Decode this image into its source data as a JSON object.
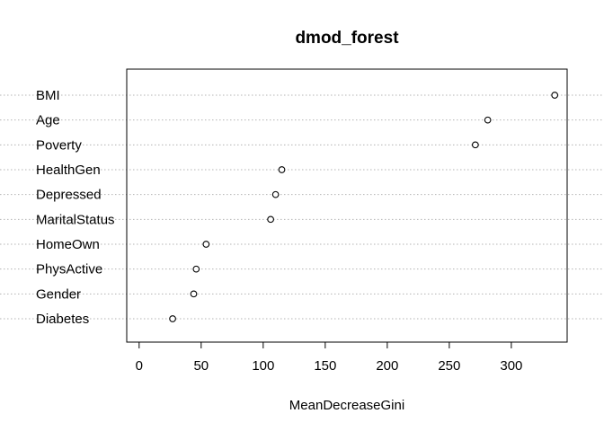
{
  "chart_data": {
    "type": "scatter",
    "title": "dmod_forest",
    "xlabel": "MeanDecreaseGini",
    "ylabel": "",
    "xlim": [
      -10,
      345
    ],
    "xticks": [
      0,
      50,
      100,
      150,
      200,
      250,
      300
    ],
    "grid": "dotted horizontal lines per variable",
    "points": [
      {
        "label": "BMI",
        "value": 335
      },
      {
        "label": "Age",
        "value": 281
      },
      {
        "label": "Poverty",
        "value": 271
      },
      {
        "label": "HealthGen",
        "value": 115
      },
      {
        "label": "Depressed",
        "value": 110
      },
      {
        "label": "MaritalStatus",
        "value": 106
      },
      {
        "label": "HomeOwn",
        "value": 54
      },
      {
        "label": "PhysActive",
        "value": 46
      },
      {
        "label": "Gender",
        "value": 44
      },
      {
        "label": "Diabetes",
        "value": 27
      }
    ]
  }
}
